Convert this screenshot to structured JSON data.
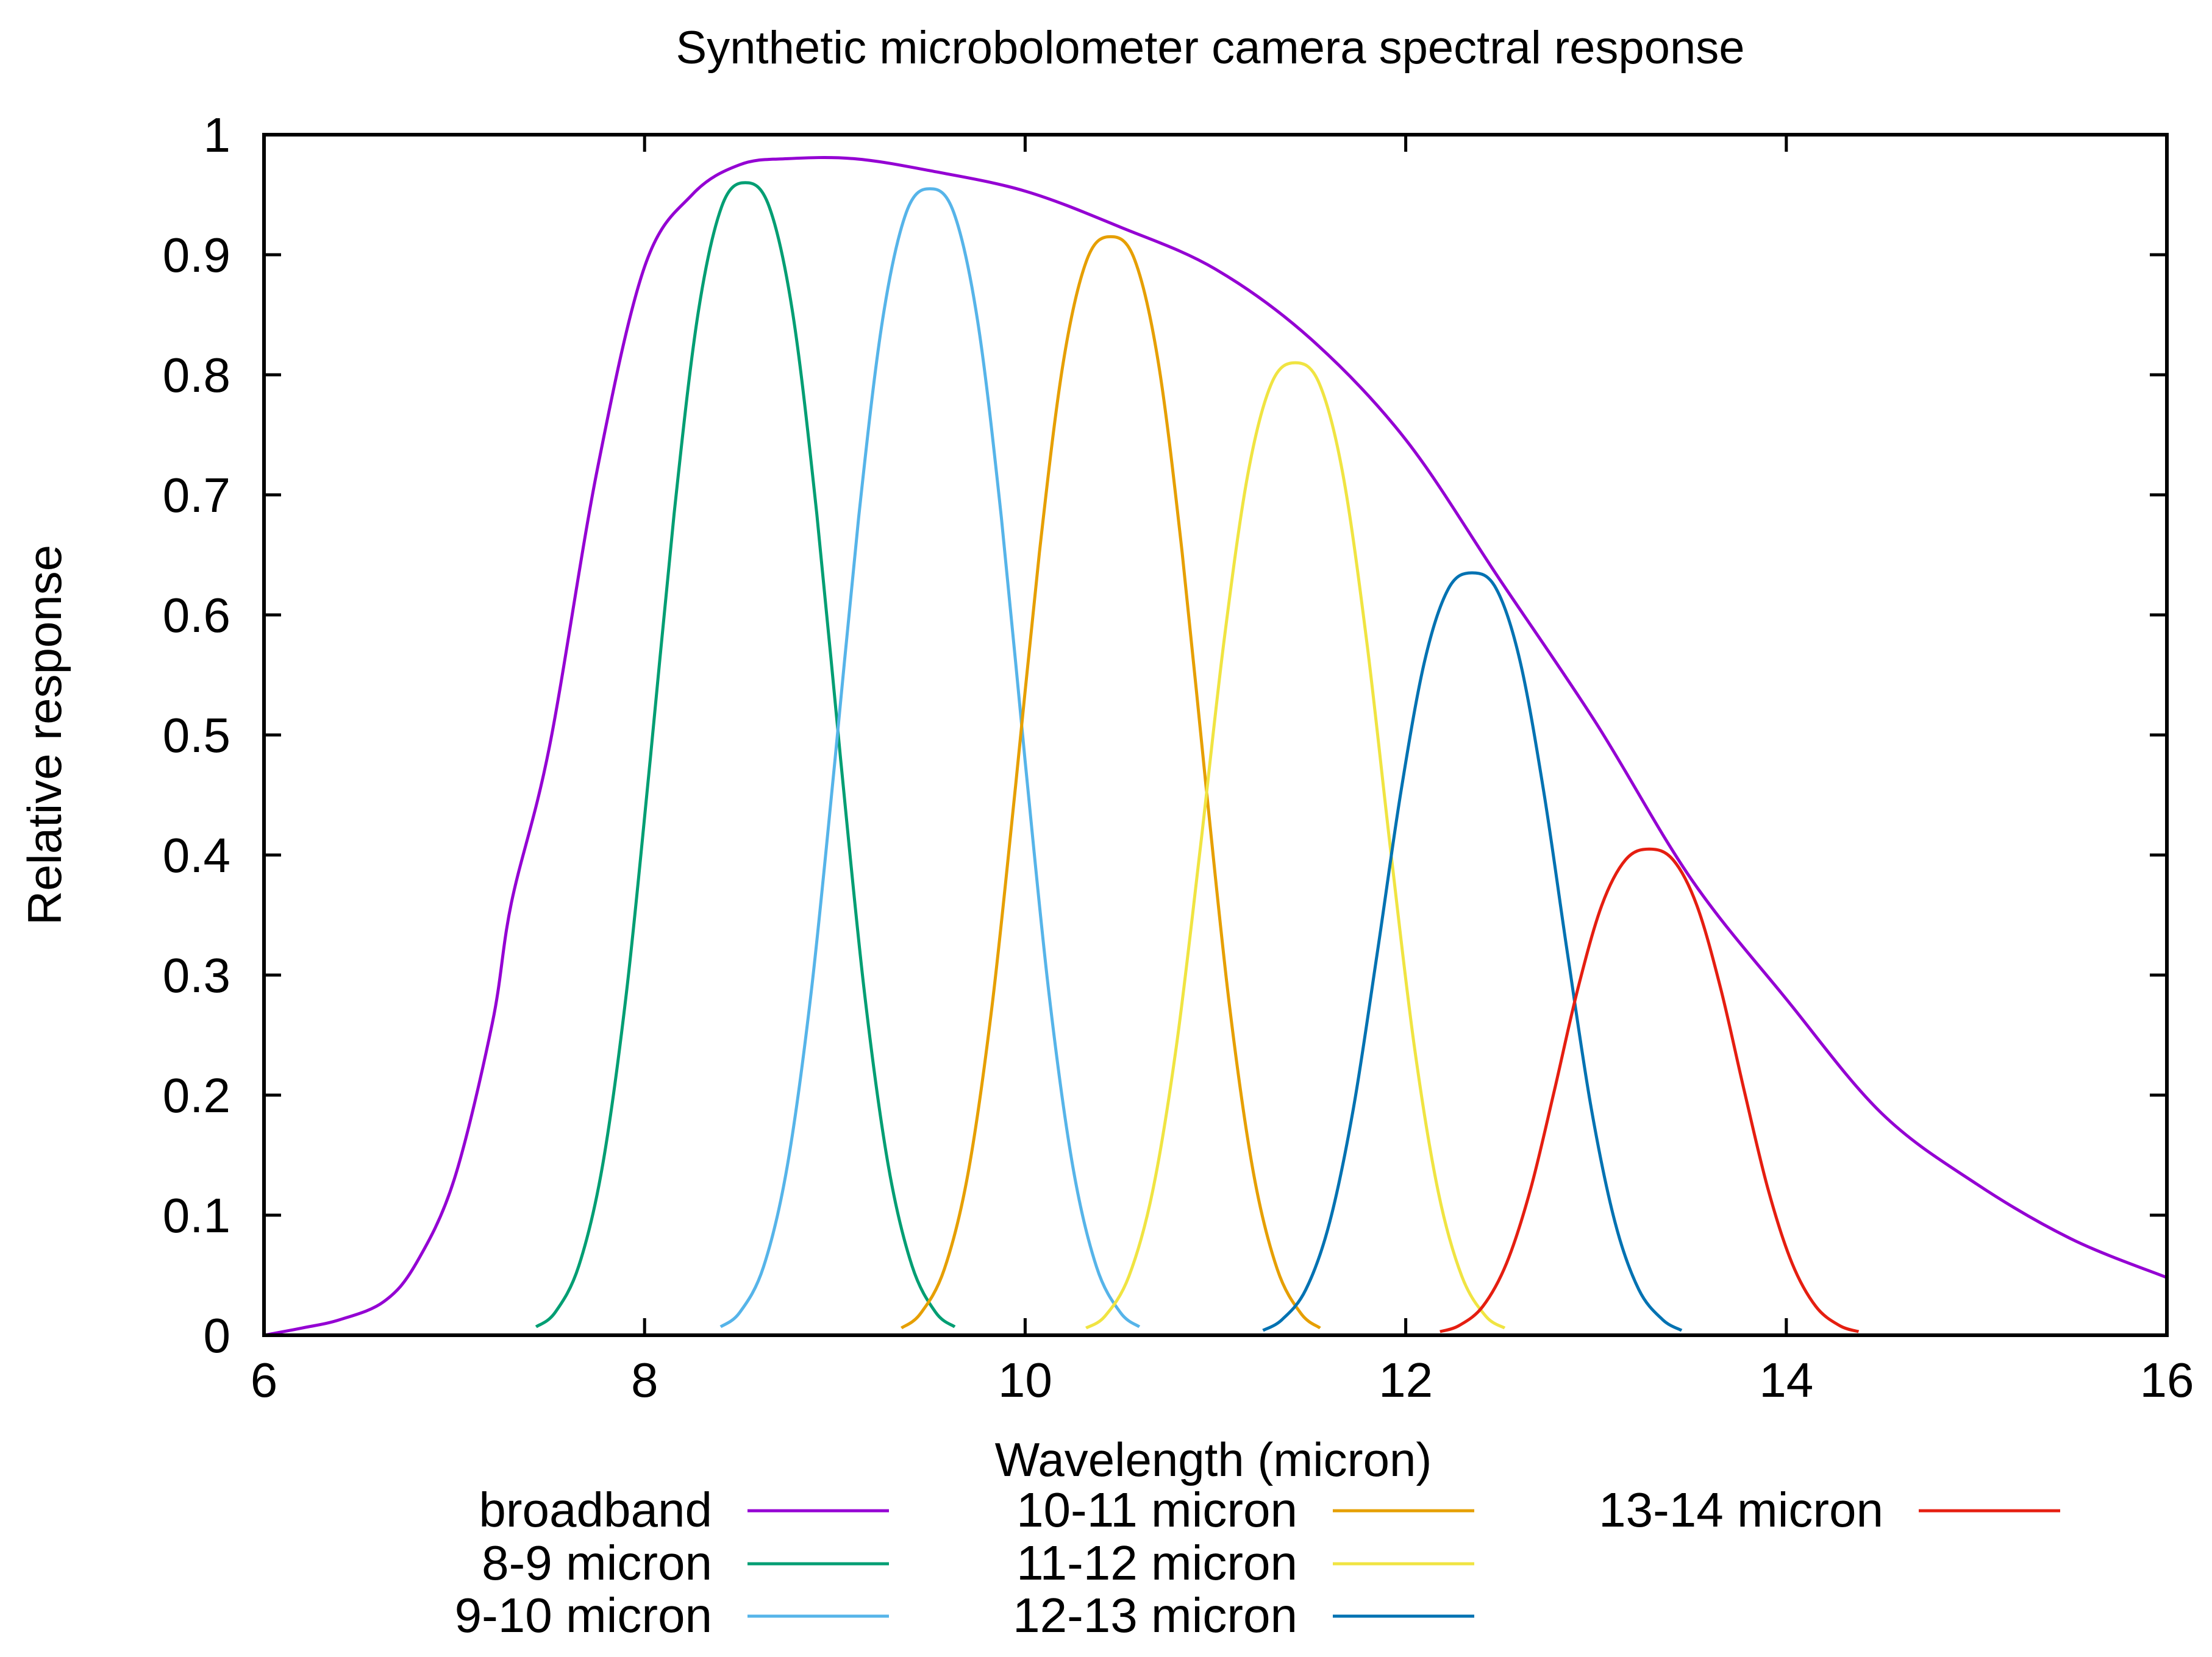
{
  "chart_data": {
    "type": "line",
    "title": "Synthetic microbolometer camera spectral response",
    "xlabel": "Wavelength (micron)",
    "ylabel": "Relative response",
    "xlim": [
      6,
      16
    ],
    "ylim": [
      0,
      1
    ],
    "xticks": [
      6,
      8,
      10,
      12,
      14,
      16
    ],
    "xtick_labels": [
      "6",
      "8",
      "10",
      "12",
      "14",
      "16"
    ],
    "yticks": [
      0,
      0.1,
      0.2,
      0.3,
      0.4,
      0.5,
      0.6,
      0.7,
      0.8,
      0.9,
      1
    ],
    "ytick_labels": [
      "0",
      "0.1",
      "0.2",
      "0.3",
      "0.4",
      "0.5",
      "0.6",
      "0.7",
      "0.8",
      "0.9",
      "1"
    ],
    "grid": false,
    "legend_placement": "bottom, below plot, 3 columns",
    "series": [
      {
        "name": "broadband",
        "color": "#9400d3",
        "x": [
          6.0,
          6.2,
          6.4,
          6.63,
          6.8,
          7.0,
          7.2,
          7.3,
          7.5,
          7.75,
          8.0,
          8.25,
          8.5,
          8.75,
          9.1,
          9.5,
          10.0,
          10.5,
          11.0,
          11.5,
          12.0,
          12.5,
          13.0,
          13.5,
          14.0,
          14.5,
          15.0,
          15.5,
          16.0
        ],
        "y": [
          0.0,
          0.006,
          0.013,
          0.028,
          0.06,
          0.13,
          0.26,
          0.36,
          0.49,
          0.72,
          0.89,
          0.95,
          0.975,
          0.98,
          0.98,
          0.97,
          0.953,
          0.923,
          0.888,
          0.83,
          0.746,
          0.628,
          0.51,
          0.38,
          0.28,
          0.185,
          0.126,
          0.08,
          0.048
        ]
      },
      {
        "name": "8-9 micron",
        "color": "#009e73",
        "x": [
          7.43,
          7.53,
          7.655,
          7.78,
          7.905,
          8.03,
          8.155,
          8.28,
          8.405,
          8.53,
          8.655,
          8.78,
          8.905,
          9.03,
          9.155,
          9.28,
          9.405,
          9.53,
          9.63
        ],
        "y": [
          0.007,
          0.019,
          0.058,
          0.142,
          0.286,
          0.48,
          0.684,
          0.85,
          0.94,
          0.96,
          0.94,
          0.85,
          0.684,
          0.48,
          0.286,
          0.142,
          0.058,
          0.019,
          0.007
        ]
      },
      {
        "name": "9-10 micron",
        "color": "#56b4e9",
        "x": [
          8.4,
          8.5,
          8.625,
          8.75,
          8.875,
          9.0,
          9.125,
          9.25,
          9.375,
          9.5,
          9.625,
          9.75,
          9.875,
          10.0,
          10.125,
          10.25,
          10.375,
          10.5,
          10.6
        ],
        "y": [
          0.007,
          0.019,
          0.057,
          0.141,
          0.285,
          0.478,
          0.681,
          0.845,
          0.935,
          0.955,
          0.935,
          0.845,
          0.681,
          0.478,
          0.285,
          0.141,
          0.057,
          0.019,
          0.007
        ]
      },
      {
        "name": "10-11 micron",
        "color": "#e69f00",
        "x": [
          9.35,
          9.45,
          9.575,
          9.7,
          9.825,
          9.95,
          10.075,
          10.2,
          10.325,
          10.45,
          10.575,
          10.7,
          10.825,
          10.95,
          11.075,
          11.2,
          11.325,
          11.45,
          11.55
        ],
        "y": [
          0.006,
          0.018,
          0.055,
          0.135,
          0.273,
          0.458,
          0.652,
          0.81,
          0.896,
          0.915,
          0.896,
          0.81,
          0.652,
          0.458,
          0.273,
          0.135,
          0.055,
          0.018,
          0.006
        ]
      },
      {
        "name": "11-12 micron",
        "color": "#f0e442",
        "x": [
          10.32,
          10.42,
          10.545,
          10.67,
          10.795,
          10.92,
          11.045,
          11.17,
          11.295,
          11.42,
          11.545,
          11.67,
          11.795,
          11.92,
          12.045,
          12.17,
          12.295,
          12.42,
          12.52
        ],
        "y": [
          0.006,
          0.016,
          0.049,
          0.12,
          0.241,
          0.405,
          0.578,
          0.717,
          0.793,
          0.81,
          0.793,
          0.717,
          0.578,
          0.405,
          0.241,
          0.12,
          0.049,
          0.016,
          0.006
        ]
      },
      {
        "name": "12-13 micron",
        "color": "#0072b2",
        "x": [
          11.25,
          11.35,
          11.475,
          11.6,
          11.725,
          11.85,
          11.975,
          12.1,
          12.225,
          12.35,
          12.475,
          12.6,
          12.725,
          12.85,
          12.975,
          13.1,
          13.225,
          13.35,
          13.45
        ],
        "y": [
          0.004,
          0.013,
          0.038,
          0.094,
          0.189,
          0.318,
          0.453,
          0.562,
          0.622,
          0.635,
          0.622,
          0.562,
          0.453,
          0.318,
          0.189,
          0.094,
          0.038,
          0.013,
          0.004
        ]
      },
      {
        "name": "13-14 micron",
        "color": "#e51e10",
        "x": [
          12.18,
          12.28,
          12.405,
          12.53,
          12.655,
          12.78,
          12.905,
          13.03,
          13.155,
          13.28,
          13.405,
          13.53,
          13.655,
          13.78,
          13.905,
          14.03,
          14.155,
          14.28,
          14.38
        ],
        "y": [
          0.003,
          0.008,
          0.024,
          0.06,
          0.121,
          0.203,
          0.289,
          0.358,
          0.396,
          0.405,
          0.396,
          0.358,
          0.289,
          0.203,
          0.121,
          0.06,
          0.024,
          0.008,
          0.003
        ]
      }
    ]
  }
}
